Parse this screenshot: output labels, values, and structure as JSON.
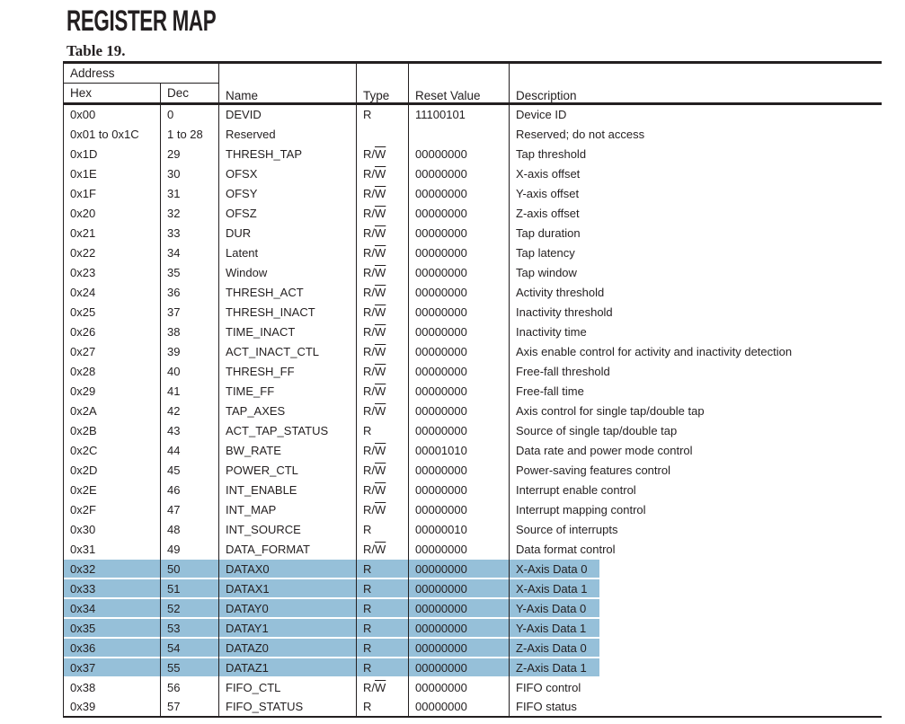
{
  "title": "REGISTER MAP",
  "table": {
    "caption": "Table 19.",
    "address_group_label": "Address",
    "columns": {
      "hex": "Hex",
      "dec": "Dec",
      "name": "Name",
      "type": "Type",
      "reset_value": "Reset Value",
      "description": "Description"
    },
    "highlight_color": "#96c0d9",
    "rows": [
      {
        "hex": "0x00",
        "dec": "0",
        "name": "DEVID",
        "type": "R",
        "type_overline_w": false,
        "reset": "11100101",
        "description": "Device ID",
        "highlighted": false
      },
      {
        "hex": "0x01 to 0x1C",
        "dec": "1 to 28",
        "name": "Reserved",
        "type": "",
        "type_overline_w": false,
        "reset": "",
        "description": "Reserved; do not access",
        "highlighted": false
      },
      {
        "hex": "0x1D",
        "dec": "29",
        "name": "THRESH_TAP",
        "type": "R/W",
        "type_overline_w": true,
        "reset": "00000000",
        "description": "Tap threshold",
        "highlighted": false
      },
      {
        "hex": "0x1E",
        "dec": "30",
        "name": "OFSX",
        "type": "R/W",
        "type_overline_w": true,
        "reset": "00000000",
        "description": "X-axis offset",
        "highlighted": false
      },
      {
        "hex": "0x1F",
        "dec": "31",
        "name": "OFSY",
        "type": "R/W",
        "type_overline_w": true,
        "reset": "00000000",
        "description": "Y-axis offset",
        "highlighted": false
      },
      {
        "hex": "0x20",
        "dec": "32",
        "name": "OFSZ",
        "type": "R/W",
        "type_overline_w": true,
        "reset": "00000000",
        "description": "Z-axis offset",
        "highlighted": false
      },
      {
        "hex": "0x21",
        "dec": "33",
        "name": "DUR",
        "type": "R/W",
        "type_overline_w": true,
        "reset": "00000000",
        "description": "Tap duration",
        "highlighted": false
      },
      {
        "hex": "0x22",
        "dec": "34",
        "name": "Latent",
        "type": "R/W",
        "type_overline_w": true,
        "reset": "00000000",
        "description": "Tap latency",
        "highlighted": false
      },
      {
        "hex": "0x23",
        "dec": "35",
        "name": "Window",
        "type": "R/W",
        "type_overline_w": true,
        "reset": "00000000",
        "description": "Tap window",
        "highlighted": false
      },
      {
        "hex": "0x24",
        "dec": "36",
        "name": "THRESH_ACT",
        "type": "R/W",
        "type_overline_w": true,
        "reset": "00000000",
        "description": "Activity threshold",
        "highlighted": false
      },
      {
        "hex": "0x25",
        "dec": "37",
        "name": "THRESH_INACT",
        "type": "R/W",
        "type_overline_w": true,
        "reset": "00000000",
        "description": "Inactivity threshold",
        "highlighted": false
      },
      {
        "hex": "0x26",
        "dec": "38",
        "name": "TIME_INACT",
        "type": "R/W",
        "type_overline_w": true,
        "reset": "00000000",
        "description": "Inactivity time",
        "highlighted": false
      },
      {
        "hex": "0x27",
        "dec": "39",
        "name": "ACT_INACT_CTL",
        "type": "R/W",
        "type_overline_w": true,
        "reset": "00000000",
        "description": "Axis enable control for activity and inactivity detection",
        "highlighted": false
      },
      {
        "hex": "0x28",
        "dec": "40",
        "name": "THRESH_FF",
        "type": "R/W",
        "type_overline_w": true,
        "reset": "00000000",
        "description": "Free-fall threshold",
        "highlighted": false
      },
      {
        "hex": "0x29",
        "dec": "41",
        "name": "TIME_FF",
        "type": "R/W",
        "type_overline_w": true,
        "reset": "00000000",
        "description": "Free-fall time",
        "highlighted": false
      },
      {
        "hex": "0x2A",
        "dec": "42",
        "name": "TAP_AXES",
        "type": "R/W",
        "type_overline_w": true,
        "reset": "00000000",
        "description": "Axis control for single tap/double tap",
        "highlighted": false
      },
      {
        "hex": "0x2B",
        "dec": "43",
        "name": "ACT_TAP_STATUS",
        "type": "R",
        "type_overline_w": false,
        "reset": "00000000",
        "description": "Source of single tap/double tap",
        "highlighted": false
      },
      {
        "hex": "0x2C",
        "dec": "44",
        "name": "BW_RATE",
        "type": "R/W",
        "type_overline_w": true,
        "reset": "00001010",
        "description": "Data rate and power mode control",
        "highlighted": false
      },
      {
        "hex": "0x2D",
        "dec": "45",
        "name": "POWER_CTL",
        "type": "R/W",
        "type_overline_w": true,
        "reset": "00000000",
        "description": "Power-saving features control",
        "highlighted": false
      },
      {
        "hex": "0x2E",
        "dec": "46",
        "name": "INT_ENABLE",
        "type": "R/W",
        "type_overline_w": true,
        "reset": "00000000",
        "description": "Interrupt enable control",
        "highlighted": false
      },
      {
        "hex": "0x2F",
        "dec": "47",
        "name": "INT_MAP",
        "type": "R/W",
        "type_overline_w": true,
        "reset": "00000000",
        "description": "Interrupt mapping control",
        "highlighted": false
      },
      {
        "hex": "0x30",
        "dec": "48",
        "name": "INT_SOURCE",
        "type": "R",
        "type_overline_w": false,
        "reset": "00000010",
        "description": "Source of interrupts",
        "highlighted": false
      },
      {
        "hex": "0x31",
        "dec": "49",
        "name": "DATA_FORMAT",
        "type": "R/W",
        "type_overline_w": true,
        "reset": "00000000",
        "description": "Data format control",
        "highlighted": false
      },
      {
        "hex": "0x32",
        "dec": "50",
        "name": "DATAX0",
        "type": "R",
        "type_overline_w": false,
        "reset": "00000000",
        "description": "X-Axis Data 0",
        "highlighted": true
      },
      {
        "hex": "0x33",
        "dec": "51",
        "name": "DATAX1",
        "type": "R",
        "type_overline_w": false,
        "reset": "00000000",
        "description": "X-Axis Data 1",
        "highlighted": true
      },
      {
        "hex": "0x34",
        "dec": "52",
        "name": "DATAY0",
        "type": "R",
        "type_overline_w": false,
        "reset": "00000000",
        "description": "Y-Axis Data 0",
        "highlighted": true
      },
      {
        "hex": "0x35",
        "dec": "53",
        "name": "DATAY1",
        "type": "R",
        "type_overline_w": false,
        "reset": "00000000",
        "description": "Y-Axis Data 1",
        "highlighted": true
      },
      {
        "hex": "0x36",
        "dec": "54",
        "name": "DATAZ0",
        "type": "R",
        "type_overline_w": false,
        "reset": "00000000",
        "description": "Z-Axis Data 0",
        "highlighted": true
      },
      {
        "hex": "0x37",
        "dec": "55",
        "name": "DATAZ1",
        "type": "R",
        "type_overline_w": false,
        "reset": "00000000",
        "description": "Z-Axis Data 1",
        "highlighted": true
      },
      {
        "hex": "0x38",
        "dec": "56",
        "name": "FIFO_CTL",
        "type": "R/W",
        "type_overline_w": true,
        "reset": "00000000",
        "description": "FIFO control",
        "highlighted": false
      },
      {
        "hex": "0x39",
        "dec": "57",
        "name": "FIFO_STATUS",
        "type": "R",
        "type_overline_w": false,
        "reset": "00000000",
        "description": "FIFO status",
        "highlighted": false
      }
    ]
  }
}
